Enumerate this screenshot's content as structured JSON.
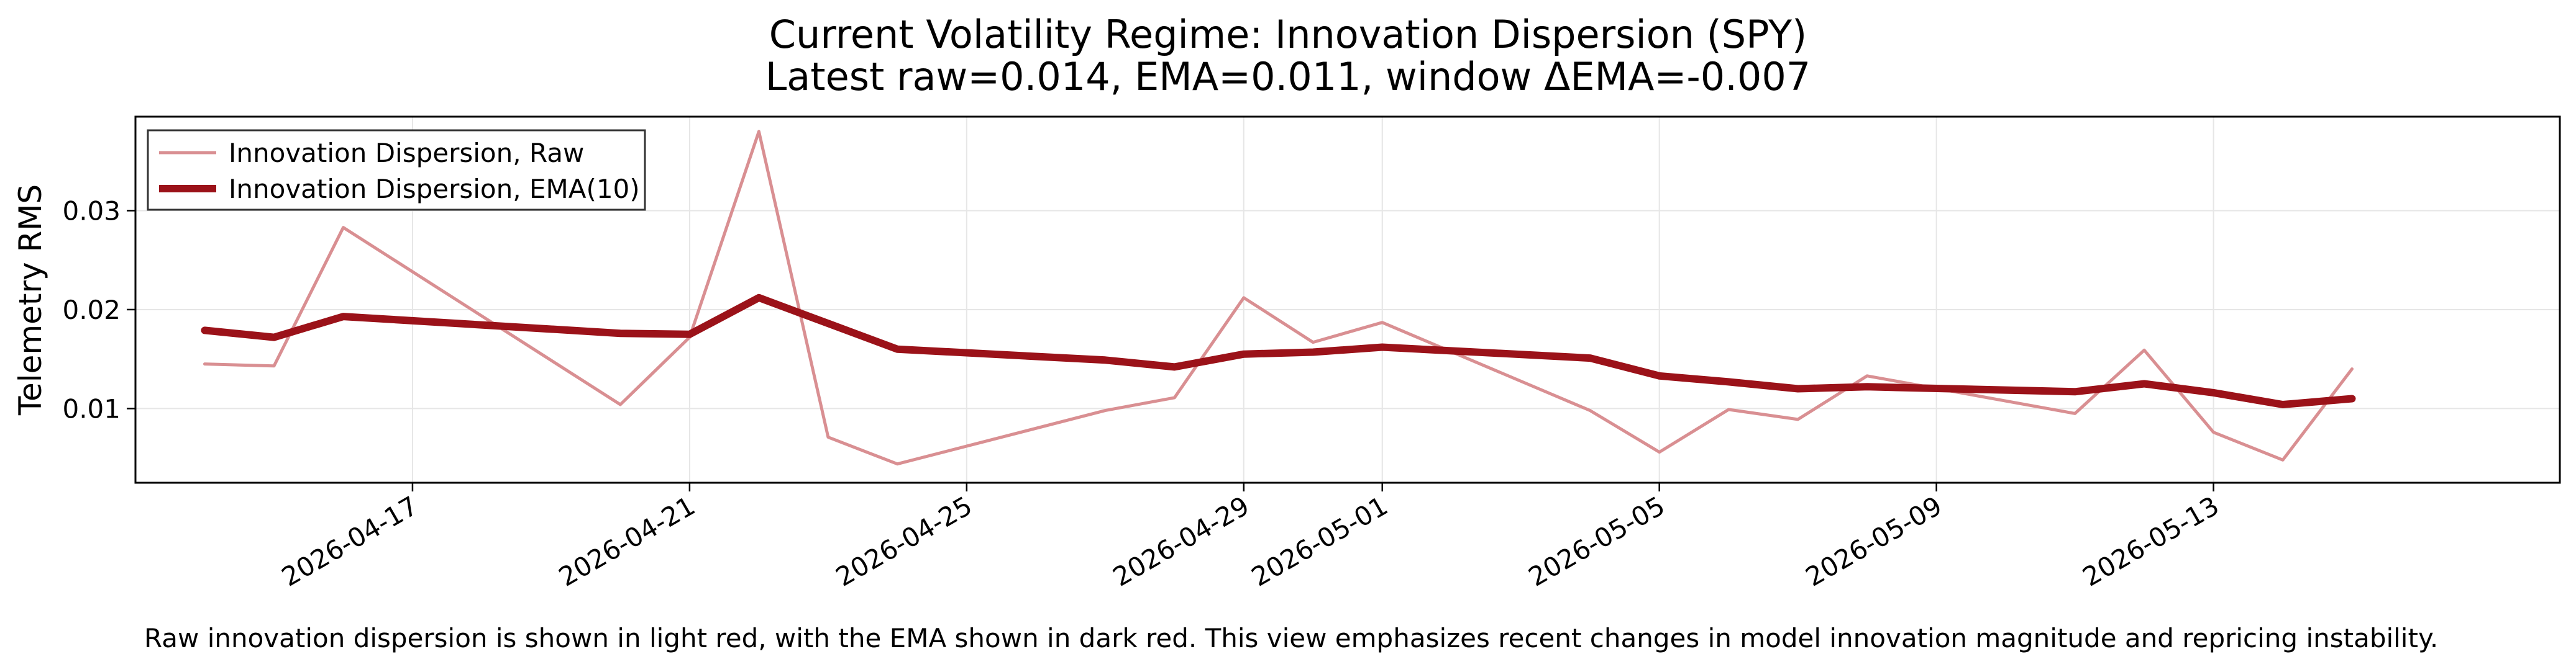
{
  "chart_data": {
    "type": "line",
    "title_line1": "Current Volatility Regime: Innovation Dispersion (SPY)",
    "title_line2": "Latest raw=0.014, EMA=0.011, window ΔEMA=-0.007",
    "xlabel": "",
    "ylabel": "Telemetry RMS",
    "xlim": [
      "2026-04-13",
      "2026-05-18"
    ],
    "ylim": [
      0.0025,
      0.0395
    ],
    "x_ticks": [
      "2026-04-17",
      "2026-04-21",
      "2026-04-25",
      "2026-04-29",
      "2026-05-01",
      "2026-05-05",
      "2026-05-09",
      "2026-05-13"
    ],
    "y_ticks": [
      0.01,
      0.02,
      0.03
    ],
    "y_tick_labels": [
      "0.01",
      "0.02",
      "0.03"
    ],
    "grid": true,
    "legend_position": "top-left",
    "x": [
      "2026-04-14",
      "2026-04-15",
      "2026-04-16",
      "2026-04-20",
      "2026-04-21",
      "2026-04-22",
      "2026-04-23",
      "2026-04-24",
      "2026-04-27",
      "2026-04-28",
      "2026-04-29",
      "2026-04-30",
      "2026-05-01",
      "2026-05-04",
      "2026-05-05",
      "2026-05-06",
      "2026-05-07",
      "2026-05-08",
      "2026-05-11",
      "2026-05-12",
      "2026-05-13",
      "2026-05-14",
      "2026-05-15"
    ],
    "series": [
      {
        "name": "Innovation Dispersion, Raw",
        "color": "#d98f92",
        "values": [
          0.0145,
          0.0143,
          0.0283,
          0.0104,
          0.0172,
          0.038,
          0.0071,
          0.0044,
          0.0098,
          0.0111,
          0.0212,
          0.0167,
          0.0187,
          0.0098,
          0.0056,
          0.0099,
          0.0089,
          0.0133,
          0.0095,
          0.0159,
          0.0076,
          0.0048,
          0.014
        ]
      },
      {
        "name": "Innovation Dispersion, EMA(10)",
        "color": "#9b1219",
        "values": [
          0.0179,
          0.0172,
          0.0193,
          0.0176,
          0.0175,
          0.0212,
          0.0186,
          0.016,
          0.0149,
          0.0142,
          0.0155,
          0.0157,
          0.0162,
          0.0151,
          0.0133,
          0.0127,
          0.012,
          0.0122,
          0.0117,
          0.0125,
          0.0116,
          0.0104,
          0.011
        ]
      }
    ]
  },
  "caption": "Raw innovation dispersion is shown in light red, with the EMA shown in dark red. This view emphasizes recent changes in model innovation magnitude and repricing instability."
}
